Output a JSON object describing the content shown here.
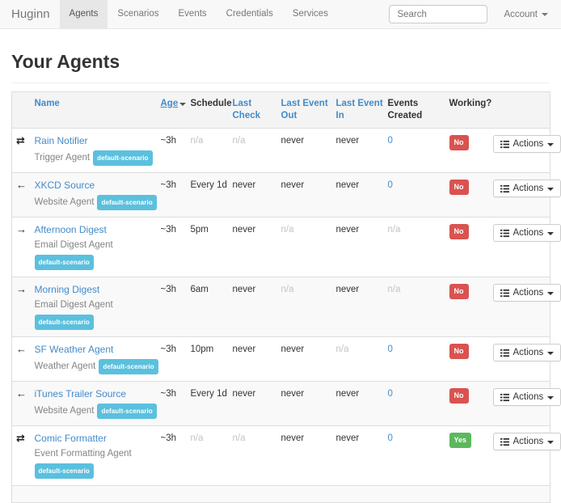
{
  "colors": {
    "link": "#428bca",
    "info": "#5bc0de",
    "danger": "#d9534f",
    "success": "#5cb85c"
  },
  "icons": {
    "transfer-icon": "⇄",
    "arrow-left-icon": "←",
    "arrow-right-icon": "→"
  },
  "navbar": {
    "brand": "Huginn",
    "items": [
      {
        "label": "Agents",
        "active": true
      },
      {
        "label": "Scenarios",
        "active": false
      },
      {
        "label": "Events",
        "active": false
      },
      {
        "label": "Credentials",
        "active": false
      },
      {
        "label": "Services",
        "active": false
      }
    ],
    "search_placeholder": "Search",
    "account_label": "Account"
  },
  "page": {
    "title": "Your Agents"
  },
  "table": {
    "headers": [
      {
        "label": "Name",
        "link": true
      },
      {
        "label": "Age",
        "link": true,
        "sorted": "desc"
      },
      {
        "label": "Schedule",
        "link": false
      },
      {
        "label": "Last Check",
        "link": true
      },
      {
        "label": "Last Event Out",
        "link": true
      },
      {
        "label": "Last Event In",
        "link": true
      },
      {
        "label": "Events Created",
        "link": false
      },
      {
        "label": "Working?",
        "link": false
      }
    ],
    "actions_label": "Actions",
    "rows": [
      {
        "icon": "transfer-icon",
        "name": "Rain Notifier",
        "type": "Trigger Agent",
        "scenario": "default-scenario",
        "badge_own_line": false,
        "age": "~3h",
        "schedule": {
          "text": "n/a",
          "muted": true
        },
        "last_check": {
          "text": "n/a",
          "muted": true
        },
        "last_event_out": {
          "text": "never"
        },
        "last_event_in": {
          "text": "never"
        },
        "events_created": {
          "text": "0",
          "link": true
        },
        "working": {
          "text": "No",
          "variant": "danger"
        }
      },
      {
        "icon": "arrow-left-icon",
        "name": "XKCD Source",
        "type": "Website Agent",
        "scenario": "default-scenario",
        "badge_own_line": false,
        "age": "~3h",
        "schedule": {
          "text": "Every 1d"
        },
        "last_check": {
          "text": "never"
        },
        "last_event_out": {
          "text": "never"
        },
        "last_event_in": {
          "text": "never"
        },
        "events_created": {
          "text": "0",
          "link": true
        },
        "working": {
          "text": "No",
          "variant": "danger"
        }
      },
      {
        "icon": "arrow-right-icon",
        "name": "Afternoon Digest",
        "type": "Email Digest Agent",
        "scenario": "default-scenario",
        "badge_own_line": true,
        "age": "~3h",
        "schedule": {
          "text": "5pm"
        },
        "last_check": {
          "text": "never"
        },
        "last_event_out": {
          "text": "n/a",
          "muted": true
        },
        "last_event_in": {
          "text": "never"
        },
        "events_created": {
          "text": "n/a",
          "muted": true
        },
        "working": {
          "text": "No",
          "variant": "danger"
        }
      },
      {
        "icon": "arrow-right-icon",
        "name": "Morning Digest",
        "type": "Email Digest Agent",
        "scenario": "default-scenario",
        "badge_own_line": true,
        "age": "~3h",
        "schedule": {
          "text": "6am"
        },
        "last_check": {
          "text": "never"
        },
        "last_event_out": {
          "text": "n/a",
          "muted": true
        },
        "last_event_in": {
          "text": "never"
        },
        "events_created": {
          "text": "n/a",
          "muted": true
        },
        "working": {
          "text": "No",
          "variant": "danger"
        }
      },
      {
        "icon": "arrow-left-icon",
        "name": "SF Weather Agent",
        "type": "Weather Agent",
        "scenario": "default-scenario",
        "badge_own_line": false,
        "age": "~3h",
        "schedule": {
          "text": "10pm"
        },
        "last_check": {
          "text": "never"
        },
        "last_event_out": {
          "text": "never"
        },
        "last_event_in": {
          "text": "n/a",
          "muted": true
        },
        "events_created": {
          "text": "0",
          "link": true
        },
        "working": {
          "text": "No",
          "variant": "danger"
        }
      },
      {
        "icon": "arrow-left-icon",
        "name": "iTunes Trailer Source",
        "type": "Website Agent",
        "scenario": "default-scenario",
        "badge_own_line": false,
        "age": "~3h",
        "schedule": {
          "text": "Every 1d"
        },
        "last_check": {
          "text": "never"
        },
        "last_event_out": {
          "text": "never"
        },
        "last_event_in": {
          "text": "never"
        },
        "events_created": {
          "text": "0",
          "link": true
        },
        "working": {
          "text": "No",
          "variant": "danger"
        }
      },
      {
        "icon": "transfer-icon",
        "name": "Comic Formatter",
        "type": "Event Formatting Agent",
        "scenario": "default-scenario",
        "badge_own_line": true,
        "age": "~3h",
        "schedule": {
          "text": "n/a",
          "muted": true
        },
        "last_check": {
          "text": "n/a",
          "muted": true
        },
        "last_event_out": {
          "text": "never"
        },
        "last_event_in": {
          "text": "never"
        },
        "events_created": {
          "text": "0",
          "link": true
        },
        "working": {
          "text": "Yes",
          "variant": "success"
        }
      }
    ]
  }
}
